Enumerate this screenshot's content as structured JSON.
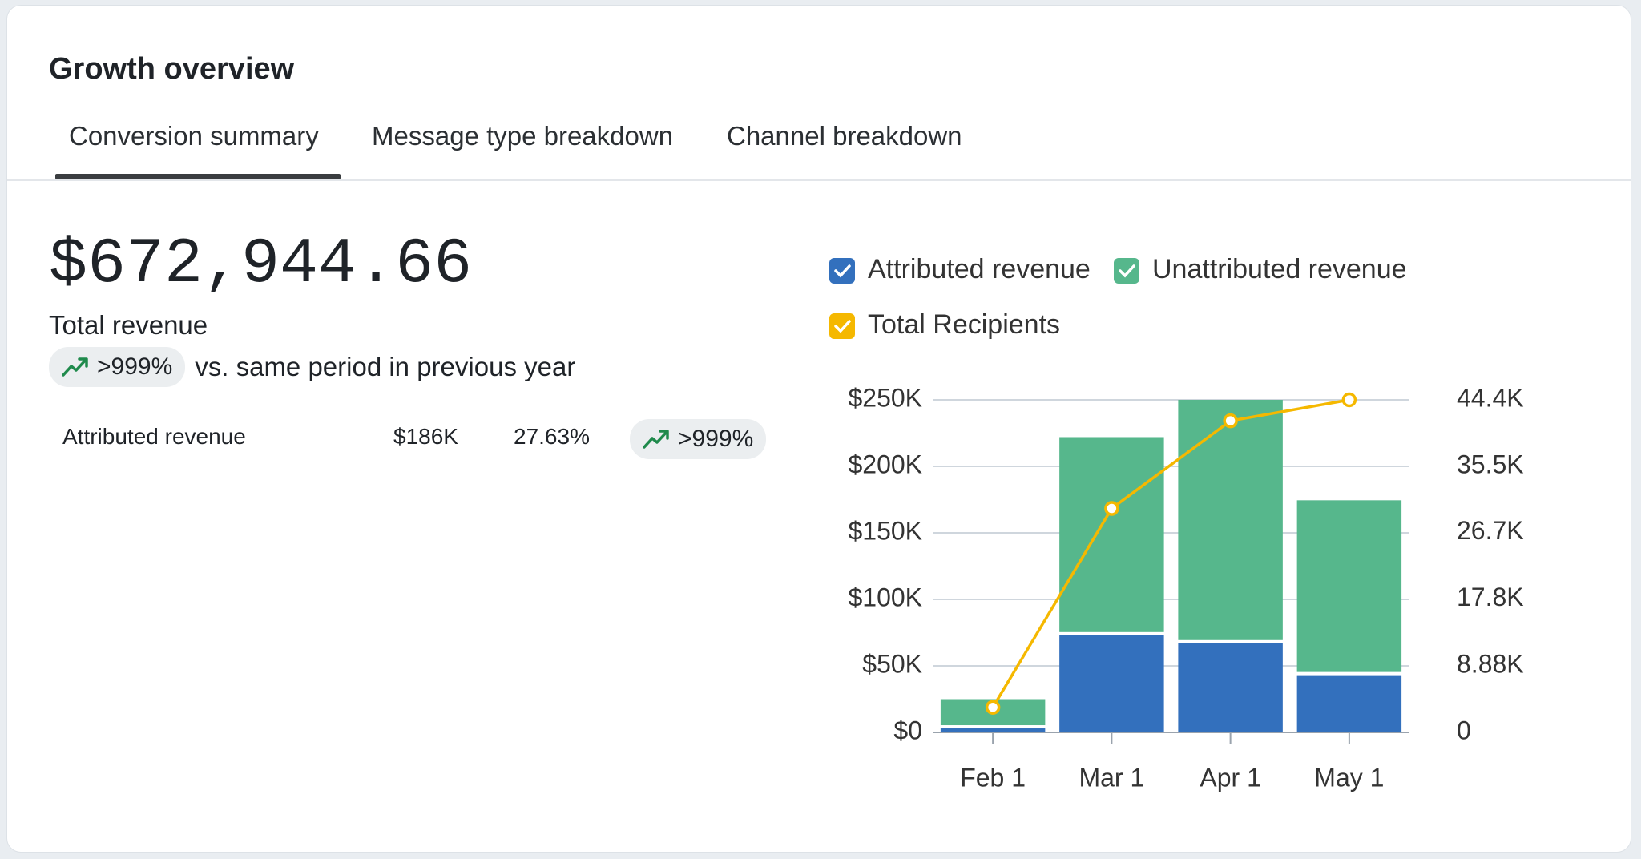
{
  "header": {
    "title": "Growth overview"
  },
  "tabs": [
    "Conversion summary",
    "Message type breakdown",
    "Channel breakdown"
  ],
  "summary": {
    "total": "$672,944.66",
    "label": "Total revenue",
    "change": ">999%",
    "comparison": "vs. same period in previous year"
  },
  "rows": [
    {
      "name": "Attributed revenue",
      "value": "$186K",
      "share": "27.63%",
      "change": ">999%"
    }
  ],
  "chart_data": {
    "type": "bar",
    "stacked": true,
    "categories": [
      "Feb 1",
      "Mar 1",
      "Apr 1",
      "May 1"
    ],
    "series": [
      {
        "name": "Attributed revenue",
        "type": "bar",
        "color": "#3370bd",
        "values": [
          3000,
          73000,
          67000,
          43000
        ]
      },
      {
        "name": "Unattributed revenue",
        "type": "bar",
        "color": "#56b78c",
        "values": [
          22000,
          149000,
          183000,
          131500
        ]
      },
      {
        "name": "Total Recipients",
        "type": "line",
        "axis": "y2",
        "color": "#f5b800",
        "values": [
          3350,
          29900,
          41600,
          44400
        ]
      }
    ],
    "ylim": [
      0,
      250000
    ],
    "yticks": [
      {
        "value": 0,
        "label": "$0"
      },
      {
        "value": 50000,
        "label": "$50K"
      },
      {
        "value": 100000,
        "label": "$100K"
      },
      {
        "value": 150000,
        "label": "$150K"
      },
      {
        "value": 200000,
        "label": "$200K"
      },
      {
        "value": 250000,
        "label": "$250K"
      }
    ],
    "y2lim": [
      0,
      44400
    ],
    "y2ticks": [
      0,
      {
        "value": 8880,
        "label": "8.88K"
      },
      {
        "value": 17800,
        "label": "17.8K"
      },
      {
        "value": 26700,
        "label": "26.7K"
      },
      {
        "value": 35500,
        "label": "35.5K"
      },
      {
        "value": 44400,
        "label": "44.4K"
      }
    ],
    "grid": true
  }
}
